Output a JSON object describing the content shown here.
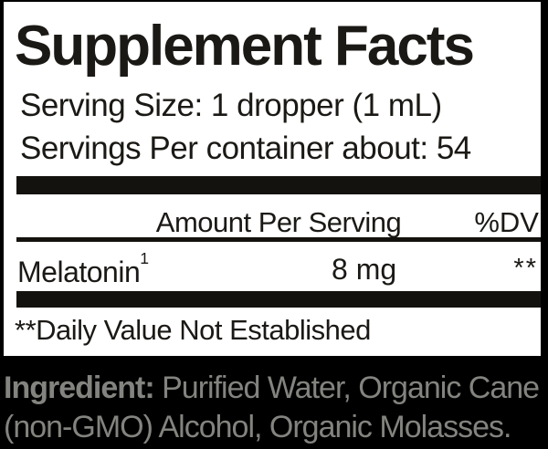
{
  "colors": {
    "background": "#000000",
    "panel_bg": "#ffffff",
    "text": "#1b1915",
    "bar": "#14120e",
    "ingredient_text": "#83837f"
  },
  "panel": {
    "title": "Supplement Facts",
    "serving_size_line": "Serving Size: 1 dropper (1 mL)",
    "servings_per_container_line": "Servings Per container about: 54",
    "table": {
      "header": {
        "amount_label": "Amount Per Serving",
        "dv_label": "%DV"
      },
      "rows": [
        {
          "name": "Melatonin",
          "footnote_marker": "1",
          "amount": "8 mg",
          "dv": "**"
        }
      ],
      "footnote": "**Daily Value Not Established"
    }
  },
  "ingredients": {
    "label": "Ingredient:",
    "line1_rest": " Purified Water, Organic Cane",
    "line2": "(non-GMO) Alcohol, Organic Molasses."
  }
}
